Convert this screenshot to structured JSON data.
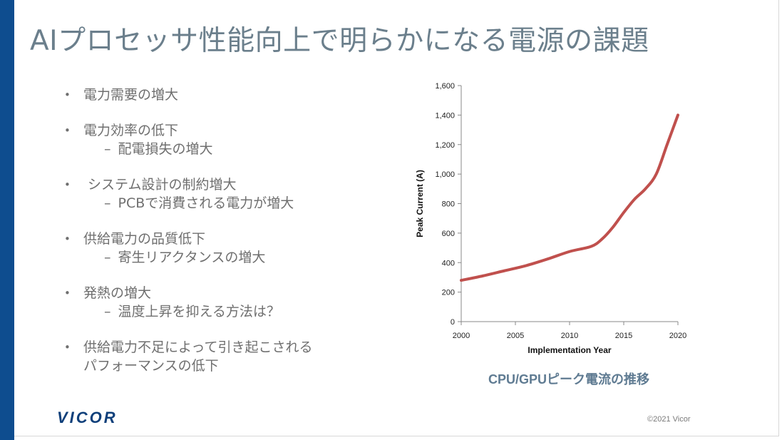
{
  "slide": {
    "title": "AIプロセッサ性能向上で明らかになる電源の課題",
    "bullets": [
      {
        "text": "電力需要の増大",
        "sub": ""
      },
      {
        "text": "電力効率の低下",
        "sub": "配電損失の増大"
      },
      {
        "text": " システム設計の制約増大",
        "sub": "PCBで消費される電力が増大"
      },
      {
        "text": "供給電力の品質低下",
        "sub": "寄生リアクタンスの増大"
      },
      {
        "text": "発熱の増大",
        "sub": "温度上昇を抑える方法は？"
      },
      {
        "text": "供給電力不足によって引き起こされる",
        "text2": "パフォーマンスの低下",
        "sub": ""
      }
    ],
    "bullet_symbol": "•",
    "dash_symbol": "–",
    "caption": "CPU/GPUピーク電流の推移",
    "logo": "VICOR",
    "copyright": "©2021 Vicor",
    "colors": {
      "sidebar": "#0e4d8f",
      "title": "#6b7f8c",
      "curve": "#c0504d",
      "caption": "#5f7b92"
    }
  },
  "chart_data": {
    "type": "line",
    "xlabel": "Implementation Year",
    "ylabel": "Peak Current (A)",
    "xlim": [
      2000,
      2020
    ],
    "ylim": [
      0,
      1600
    ],
    "x_ticks": [
      "2000",
      "2005",
      "2010",
      "2015",
      "2020"
    ],
    "y_ticks": [
      "0",
      "200",
      "400",
      "600",
      "800",
      "1,000",
      "1,200",
      "1,400",
      "1,600"
    ],
    "grid": false,
    "series": [
      {
        "color": "#c0504d",
        "x": [
          2000,
          2002,
          2004,
          2006,
          2008,
          2010,
          2012,
          2013,
          2014,
          2015,
          2016,
          2017,
          2018,
          2019,
          2020
        ],
        "y": [
          280,
          310,
          345,
          380,
          425,
          475,
          510,
          560,
          640,
          740,
          830,
          900,
          1000,
          1200,
          1400
        ]
      }
    ]
  }
}
